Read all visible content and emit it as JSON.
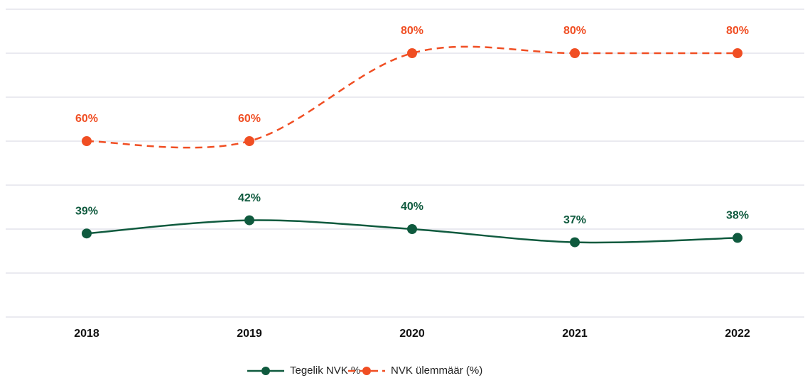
{
  "chart_data": {
    "type": "line",
    "categories": [
      "2018",
      "2019",
      "2020",
      "2021",
      "2022"
    ],
    "series": [
      {
        "name": "Tegelik NVK %",
        "color": "#0f5a3e",
        "dash": false,
        "values": [
          39,
          42,
          40,
          37,
          38
        ],
        "value_labels": [
          "39%",
          "42%",
          "40%",
          "37%",
          "38%"
        ]
      },
      {
        "name": "NVK ülemmäär (%)",
        "color": "#f04e23",
        "dash": true,
        "values": [
          60,
          60,
          80,
          80,
          80
        ],
        "value_labels": [
          "60%",
          "60%",
          "80%",
          "80%",
          "80%"
        ]
      }
    ],
    "ylim": [
      20,
      90
    ],
    "yticks": [
      20,
      30,
      40,
      50,
      60,
      70,
      80,
      90
    ],
    "grid": true,
    "legend": "bottom"
  }
}
